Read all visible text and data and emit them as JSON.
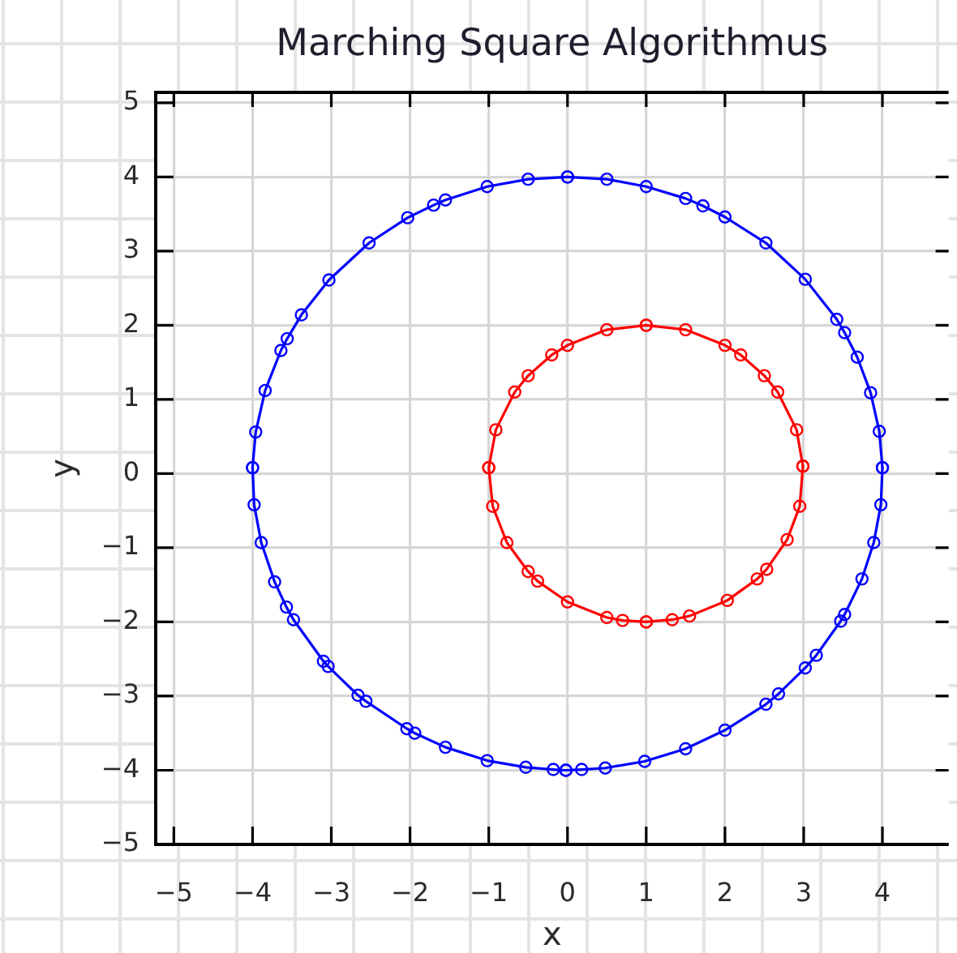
{
  "chart_data": {
    "type": "line",
    "title": "Marching Square Algorithmus",
    "xlabel": "x",
    "ylabel": "y",
    "series": [
      {
        "color": "#0000ff",
        "x": [
          -4.0,
          -3.96,
          -3.84,
          -3.64,
          -3.56,
          -3.38,
          -3.03,
          -2.52,
          -2.03,
          -1.7,
          -1.55,
          -1.02,
          -0.5,
          0.0
        ],
        "values": [
          0.08,
          0.56,
          1.12,
          1.66,
          1.82,
          2.14,
          2.61,
          3.11,
          3.45,
          3.62,
          3.69,
          3.87,
          3.97,
          4.0
        ]
      },
      {
        "color": "#0000ff",
        "x": [
          0.0,
          0.5,
          1.0,
          1.5,
          1.72,
          2.0,
          2.52,
          3.02,
          3.42,
          3.52,
          3.68,
          3.85,
          3.96,
          4.0
        ],
        "values": [
          4.0,
          3.97,
          3.87,
          3.71,
          3.61,
          3.46,
          3.11,
          2.62,
          2.08,
          1.9,
          1.57,
          1.09,
          0.57,
          0.08
        ]
      },
      {
        "color": "#0000ff",
        "x": [
          -4.0,
          -3.98,
          -3.89,
          -3.72,
          -3.57,
          -3.48,
          -3.1,
          -3.04,
          -2.66,
          -2.56,
          -2.04,
          -1.94,
          -1.55,
          -1.02,
          -0.53,
          -0.18,
          -0.02
        ],
        "values": [
          0.08,
          -0.42,
          -0.93,
          -1.46,
          -1.8,
          -1.97,
          -2.53,
          -2.6,
          -2.99,
          -3.07,
          -3.44,
          -3.5,
          -3.69,
          -3.87,
          -3.96,
          -3.99,
          -4.0
        ]
      },
      {
        "color": "#0000ff",
        "x": [
          -0.02,
          0.18,
          0.48,
          0.98,
          1.5,
          2.0,
          2.52,
          2.68,
          3.02,
          3.16,
          3.47,
          3.52,
          3.74,
          3.89,
          3.98,
          4.0
        ],
        "values": [
          -4.0,
          -3.99,
          -3.97,
          -3.88,
          -3.71,
          -3.46,
          -3.11,
          -2.97,
          -2.62,
          -2.45,
          -1.99,
          -1.9,
          -1.42,
          -0.93,
          -0.42,
          0.08
        ]
      },
      {
        "color": "#ff0000",
        "x": [
          -1.0,
          -0.91,
          -0.67,
          -0.5,
          -0.2,
          0.0,
          0.5,
          1.0
        ],
        "values": [
          0.08,
          0.59,
          1.1,
          1.32,
          1.6,
          1.73,
          1.94,
          2.0
        ]
      },
      {
        "color": "#ff0000",
        "x": [
          1.0,
          1.5,
          2.0,
          2.2,
          2.5,
          2.67,
          2.91,
          2.99
        ],
        "values": [
          2.0,
          1.94,
          1.73,
          1.6,
          1.32,
          1.1,
          0.59,
          0.1
        ]
      },
      {
        "color": "#ff0000",
        "x": [
          -1.0,
          -0.95,
          -0.77,
          -0.5,
          -0.38,
          0.0,
          0.5,
          0.7,
          1.0
        ],
        "values": [
          0.08,
          -0.44,
          -0.93,
          -1.32,
          -1.45,
          -1.73,
          -1.94,
          -1.98,
          -2.0
        ]
      },
      {
        "color": "#ff0000",
        "x": [
          1.0,
          1.33,
          1.55,
          2.03,
          2.41,
          2.53,
          2.79,
          2.95,
          2.99
        ],
        "values": [
          -2.0,
          -1.97,
          -1.92,
          -1.71,
          -1.42,
          -1.29,
          -0.89,
          -0.44,
          0.1
        ]
      }
    ],
    "xlim": [
      -5.23,
      4.84
    ],
    "ylim": [
      -5,
      5.14
    ],
    "xticks": [
      {
        "value": -5,
        "label": "−5"
      },
      {
        "value": -4,
        "label": "−4"
      },
      {
        "value": -3,
        "label": "−3"
      },
      {
        "value": -2,
        "label": "−2"
      },
      {
        "value": -1,
        "label": "−1"
      },
      0,
      1,
      2,
      3,
      4
    ],
    "yticks": [
      {
        "value": -5,
        "label": "−5"
      },
      {
        "value": -4,
        "label": "−4"
      },
      {
        "value": -3,
        "label": "−3"
      },
      {
        "value": -2,
        "label": "−2"
      },
      {
        "value": -1,
        "label": "−1"
      },
      0,
      1,
      2,
      3,
      4,
      5
    ],
    "grid": true,
    "marker": "circle",
    "line_style": "solid"
  }
}
